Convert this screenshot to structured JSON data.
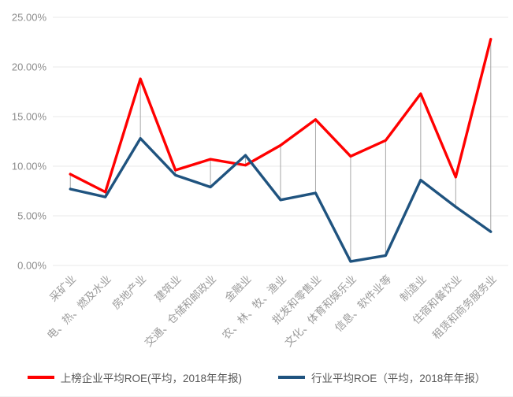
{
  "chart_data": {
    "type": "line",
    "title": "",
    "xlabel": "",
    "ylabel": "",
    "categories": [
      "采矿业",
      "电、热、燃及水业",
      "房地产业",
      "建筑业",
      "交通、仓储和邮政业",
      "金融业",
      "农、林、牧、渔业",
      "批发和零售业",
      "文化、体育和娱乐业",
      "信息、软件业等",
      "制造业",
      "住宿和餐饮业",
      "租赁和商务服务业"
    ],
    "series": [
      {
        "name": "上榜企业平均ROE(平均，2018年年报)",
        "color": "#FF0000",
        "values": [
          9.2,
          7.4,
          18.8,
          9.6,
          10.7,
          10.1,
          12.1,
          14.7,
          11.0,
          12.6,
          17.3,
          8.9,
          22.8
        ]
      },
      {
        "name": "行业平均ROE（平均，2018年年报）",
        "color": "#1F537F",
        "values": [
          7.7,
          6.9,
          12.8,
          9.1,
          7.9,
          11.1,
          6.6,
          7.3,
          0.4,
          1.0,
          8.6,
          5.9,
          3.4
        ]
      }
    ],
    "ylim": [
      0,
      25
    ],
    "ytick_labels": [
      "0.00%",
      "5.00%",
      "10.00%",
      "15.00%",
      "20.00%",
      "25.00%"
    ],
    "grid": true,
    "high_low_lines": true,
    "legend_position": "bottom",
    "gridline_color": "#E9E9E9",
    "dropline_color": "#A6A6A6"
  }
}
